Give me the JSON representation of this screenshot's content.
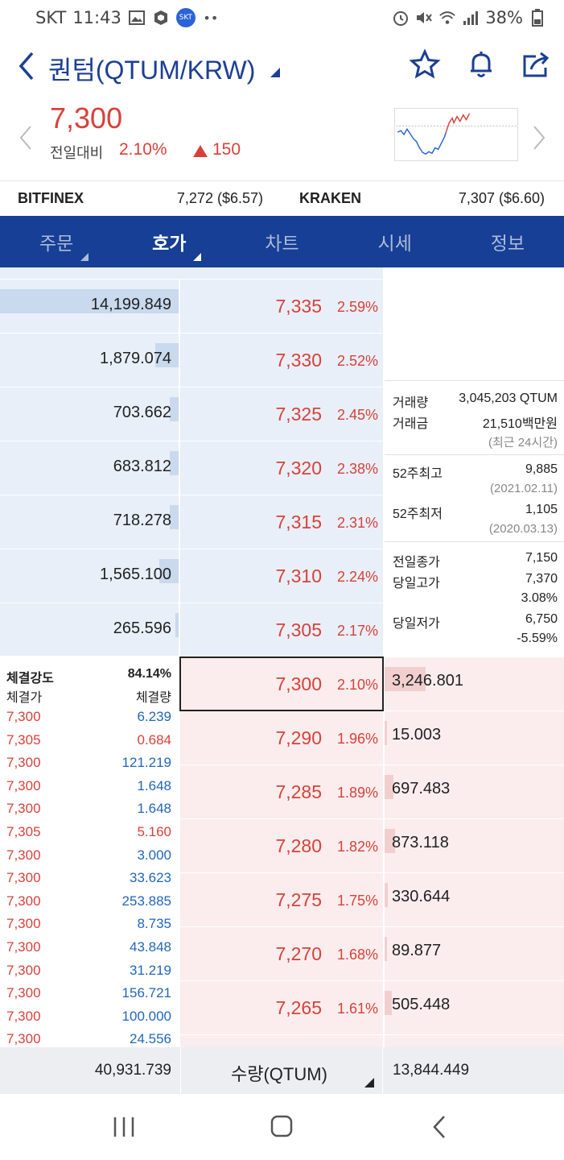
{
  "status": {
    "carrier": "SKT",
    "time": "11:43",
    "battery": "38%"
  },
  "header": {
    "title": "퀀텀(QTUM/KRW)"
  },
  "price": {
    "current": "7,300",
    "change_label": "전일대비",
    "change_rate": "2.10%",
    "change_amount": "150"
  },
  "exchanges": [
    {
      "name": "BITFINEX",
      "value": "7,272 ($6.57)"
    },
    {
      "name": "KRAKEN",
      "value": "7,307 ($6.60)"
    }
  ],
  "tabs": [
    "주문",
    "호가",
    "차트",
    "시세",
    "정보"
  ],
  "asks": [
    {
      "qty": "14,199.849",
      "price": "7,335",
      "rate": "2.59%",
      "bar": 1.0
    },
    {
      "qty": "1,879.074",
      "price": "7,330",
      "rate": "2.52%",
      "bar": 0.13
    },
    {
      "qty": "703.662",
      "price": "7,325",
      "rate": "2.45%",
      "bar": 0.05
    },
    {
      "qty": "683.812",
      "price": "7,320",
      "rate": "2.38%",
      "bar": 0.05
    },
    {
      "qty": "718.278",
      "price": "7,315",
      "rate": "2.31%",
      "bar": 0.05
    },
    {
      "qty": "1,565.100",
      "price": "7,310",
      "rate": "2.24%",
      "bar": 0.11
    },
    {
      "qty": "265.596",
      "price": "7,305",
      "rate": "2.17%",
      "bar": 0.02
    }
  ],
  "bids": [
    {
      "qty": "3,246.801",
      "price": "7,300",
      "rate": "2.10%",
      "bar": 0.23
    },
    {
      "qty": "15.003",
      "price": "7,290",
      "rate": "1.96%",
      "bar": 0.01
    },
    {
      "qty": "697.483",
      "price": "7,285",
      "rate": "1.89%",
      "bar": 0.05
    },
    {
      "qty": "873.118",
      "price": "7,280",
      "rate": "1.82%",
      "bar": 0.06
    },
    {
      "qty": "330.644",
      "price": "7,275",
      "rate": "1.75%",
      "bar": 0.02
    },
    {
      "qty": "89.877",
      "price": "7,270",
      "rate": "1.68%",
      "bar": 0.01
    },
    {
      "qty": "505.448",
      "price": "7,265",
      "rate": "1.61%",
      "bar": 0.04
    }
  ],
  "info": {
    "volume_label": "거래량",
    "volume": "3,045,203 QTUM",
    "amount_label": "거래금",
    "amount": "21,510백만원",
    "period": "(최근 24시간)",
    "high52_label": "52주최고",
    "high52": "9,885",
    "high52_date": "(2021.02.11)",
    "low52_label": "52주최저",
    "low52": "1,105",
    "low52_date": "(2020.03.13)",
    "prev_close_label": "전일종가",
    "prev_close": "7,150",
    "day_high_label": "당일고가",
    "day_high": "7,370",
    "day_high_rate": "3.08%",
    "day_low_label": "당일저가",
    "day_low": "6,750",
    "day_low_rate": "-5.59%"
  },
  "trades": {
    "strength_label": "체결강도",
    "strength": "84.14%",
    "price_header": "체결가",
    "qty_header": "체결량",
    "rows": [
      {
        "p": "7,300",
        "q": "6.239",
        "dir": "dn"
      },
      {
        "p": "7,305",
        "q": "0.684",
        "dir": "up"
      },
      {
        "p": "7,300",
        "q": "121.219",
        "dir": "dn"
      },
      {
        "p": "7,300",
        "q": "1.648",
        "dir": "dn"
      },
      {
        "p": "7,300",
        "q": "1.648",
        "dir": "dn"
      },
      {
        "p": "7,305",
        "q": "5.160",
        "dir": "up"
      },
      {
        "p": "7,300",
        "q": "3.000",
        "dir": "dn"
      },
      {
        "p": "7,300",
        "q": "33.623",
        "dir": "dn"
      },
      {
        "p": "7,300",
        "q": "253.885",
        "dir": "dn"
      },
      {
        "p": "7,300",
        "q": "8.735",
        "dir": "dn"
      },
      {
        "p": "7,300",
        "q": "43.848",
        "dir": "dn"
      },
      {
        "p": "7,300",
        "q": "31.219",
        "dir": "dn"
      },
      {
        "p": "7,300",
        "q": "156.721",
        "dir": "dn"
      },
      {
        "p": "7,300",
        "q": "100.000",
        "dir": "dn"
      },
      {
        "p": "7,300",
        "q": "24.556",
        "dir": "dn"
      }
    ]
  },
  "totals": {
    "ask_total": "40,931.739",
    "unit": "수량(QTUM)",
    "bid_total": "13,844.449"
  }
}
